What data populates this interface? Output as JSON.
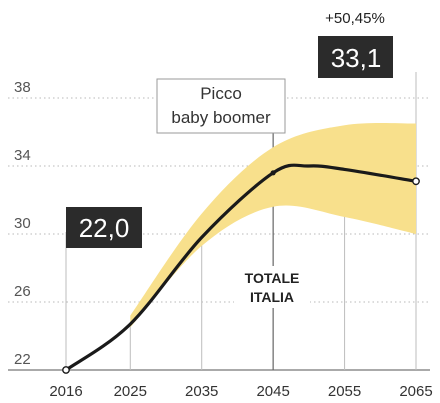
{
  "chart_data": {
    "type": "line",
    "x": [
      2016,
      2025,
      2035,
      2045,
      2050,
      2055,
      2065
    ],
    "series": [
      {
        "values": [
          22.0,
          24.7,
          29.8,
          33.6,
          34.0,
          33.8,
          33.1
        ]
      }
    ],
    "band": {
      "x": [
        2025,
        2035,
        2045,
        2055,
        2065
      ],
      "lower": [
        24.5,
        29.3,
        31.6,
        31.0,
        30.0
      ],
      "upper": [
        25.2,
        31.2,
        35.1,
        36.4,
        36.5
      ]
    },
    "x_ticks": [
      "2016",
      "2025",
      "2035",
      "2045",
      "2055",
      "2065"
    ],
    "y_ticks": [
      "22",
      "26",
      "30",
      "34",
      "38"
    ],
    "ylim": [
      22,
      38
    ],
    "xlim": [
      2016,
      2065
    ],
    "grid": true,
    "colors": {
      "line": "#1a1a1a",
      "band": "#f8e08c",
      "label_bg": "#2b2b2b"
    },
    "annotations": {
      "start_value": "22,0",
      "end_value": "33,1",
      "end_change": "+50,45%",
      "peak_line1": "Picco",
      "peak_line2": "baby boomer",
      "region_line1": "TOTALE",
      "region_line2": "ITALIA"
    }
  }
}
